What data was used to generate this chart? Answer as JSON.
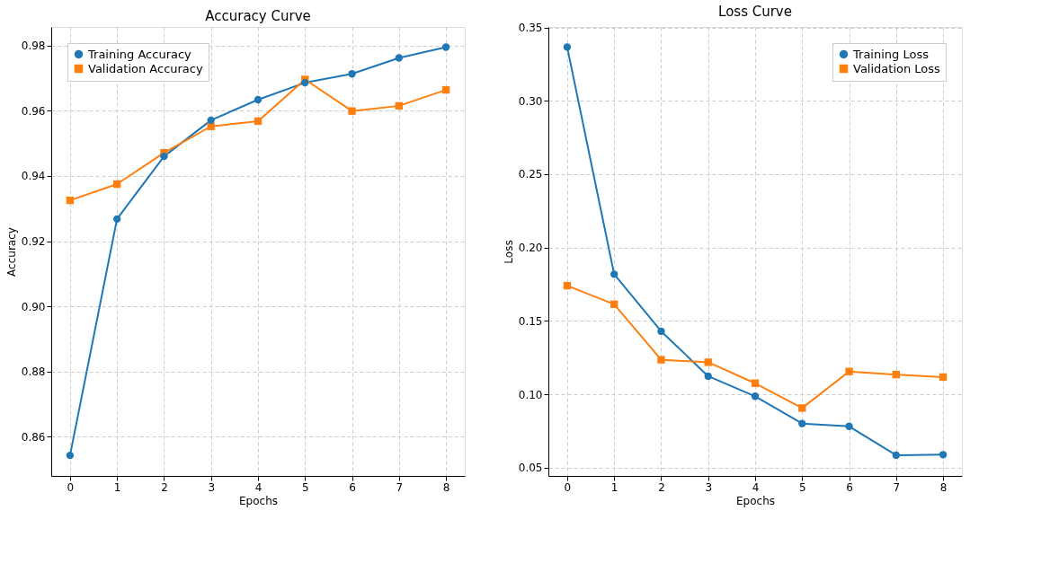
{
  "chart_data": [
    {
      "type": "line",
      "title": "Accuracy Curve",
      "xlabel": "Epochs",
      "ylabel": "Accuracy",
      "x": [
        0,
        1,
        2,
        3,
        4,
        5,
        6,
        7,
        8
      ],
      "xlim": [
        -0.4,
        8.4
      ],
      "xticks": [
        0,
        1,
        2,
        3,
        4,
        5,
        6,
        7,
        8
      ],
      "ylim": [
        0.848,
        0.9857
      ],
      "yticks": [
        0.86,
        0.88,
        {
          "value": 0.9,
          "label": "0.90"
        },
        0.92,
        0.94,
        0.96,
        0.98
      ],
      "grid": true,
      "legend": "top left",
      "line_style": "solid",
      "series": [
        {
          "name": "Training Accuracy",
          "color": "#1f77b4",
          "marker": "circle",
          "values": [
            0.8543,
            0.9268,
            0.946,
            0.9571,
            0.9634,
            0.9686,
            0.9713,
            0.9762,
            0.9795
          ]
        },
        {
          "name": "Validation Accuracy",
          "color": "#ff7f0e",
          "marker": "square",
          "values": [
            0.9325,
            0.9375,
            0.9471,
            0.9552,
            0.9568,
            0.9696,
            0.9599,
            0.9615,
            0.9664
          ]
        }
      ]
    },
    {
      "type": "line",
      "title": "Loss Curve",
      "xlabel": "Epochs",
      "ylabel": "Loss",
      "x": [
        0,
        1,
        2,
        3,
        4,
        5,
        6,
        7,
        8
      ],
      "xlim": [
        -0.4,
        8.4
      ],
      "xticks": [
        0,
        1,
        2,
        3,
        4,
        5,
        6,
        7,
        8
      ],
      "ylim": [
        0.0443,
        0.3504
      ],
      "yticks": [
        0.05,
        {
          "value": 0.1,
          "label": "0.10"
        },
        0.15,
        {
          "value": 0.2,
          "label": "0.20"
        },
        0.25,
        {
          "value": 0.3,
          "label": "0.30"
        },
        0.35
      ],
      "grid": true,
      "legend": "top right",
      "line_style": "solid",
      "series": [
        {
          "name": "Training Loss",
          "color": "#1f77b4",
          "marker": "circle",
          "values": [
            0.3367,
            0.1818,
            0.1429,
            0.1123,
            0.0986,
            0.08,
            0.0781,
            0.0584,
            0.0588
          ]
        },
        {
          "name": "Validation Loss",
          "color": "#ff7f0e",
          "marker": "square",
          "values": [
            0.174,
            0.1613,
            0.1235,
            0.1218,
            0.1075,
            0.0906,
            0.1155,
            0.1134,
            0.1117
          ]
        }
      ]
    }
  ]
}
